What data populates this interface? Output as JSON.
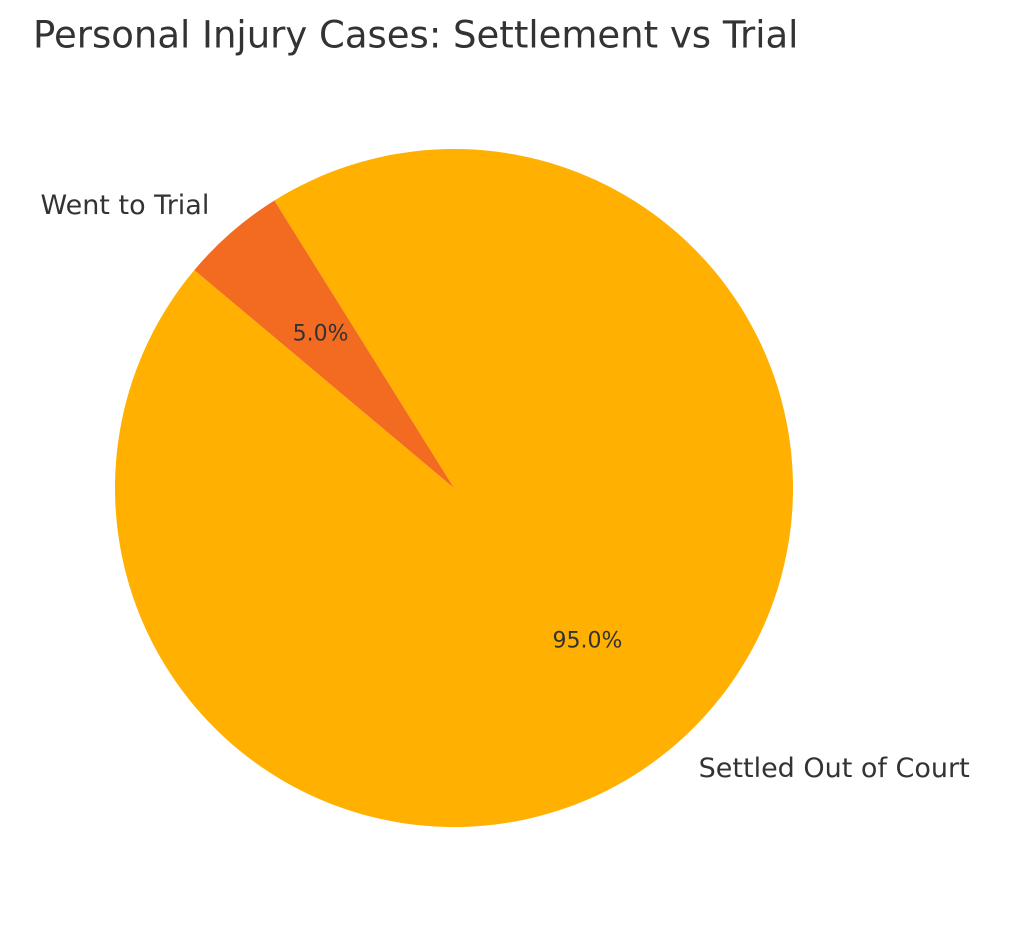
{
  "chart_data": {
    "type": "pie",
    "title": "Personal Injury Cases: Settlement vs Trial",
    "categories": [
      "Settled Out of Court",
      "Went to Trial"
    ],
    "values": [
      95,
      5
    ],
    "value_labels": [
      "95.0%",
      "5.0%"
    ],
    "colors": [
      "#ffb000",
      "#f26b21"
    ]
  }
}
